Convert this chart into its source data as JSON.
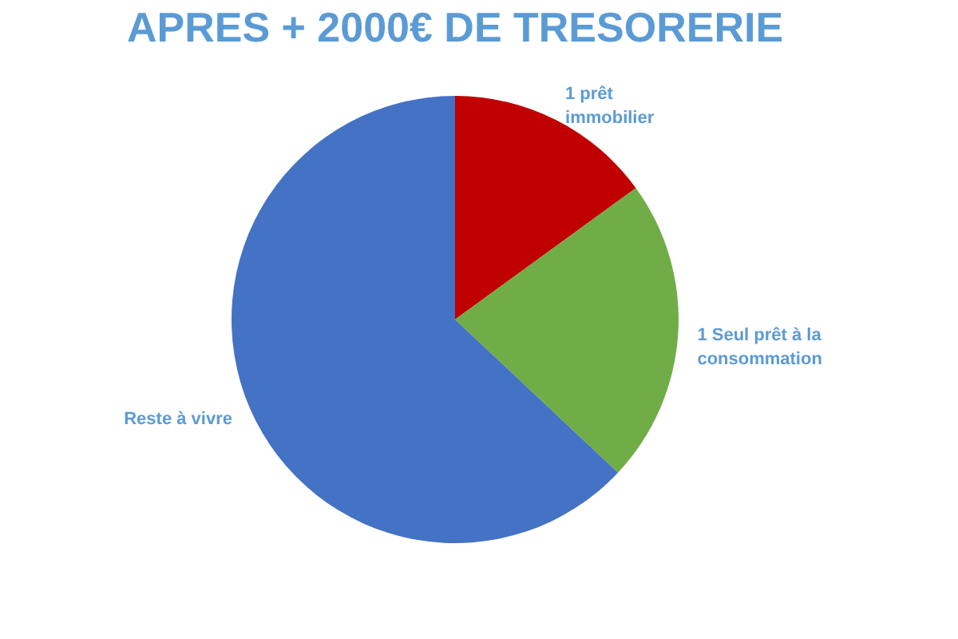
{
  "chart_data": {
    "type": "pie",
    "title": "APRES + 2000€ DE TRESORERIE",
    "categories": [
      "1 prêt immobilier",
      "1 Seul prêt à la consommation",
      "Reste à vivre"
    ],
    "values": [
      15,
      22,
      63
    ],
    "colors": [
      "#c00000",
      "#70ad47",
      "#4472c4"
    ],
    "legend": false
  }
}
